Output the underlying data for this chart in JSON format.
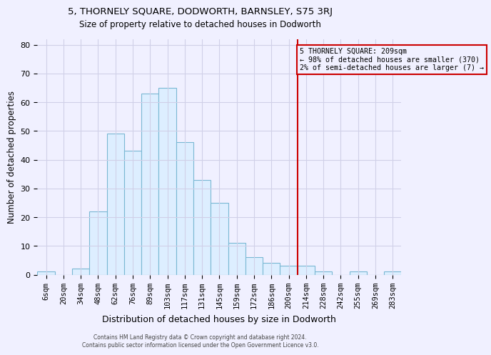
{
  "title": "5, THORNELY SQUARE, DODWORTH, BARNSLEY, S75 3RJ",
  "subtitle": "Size of property relative to detached houses in Dodworth",
  "xlabel": "Distribution of detached houses by size in Dodworth",
  "ylabel": "Number of detached properties",
  "footer_line1": "Contains HM Land Registry data © Crown copyright and database right 2024.",
  "footer_line2": "Contains public sector information licensed under the Open Government Licence v3.0.",
  "bar_labels": [
    "6sqm",
    "20sqm",
    "34sqm",
    "48sqm",
    "62sqm",
    "76sqm",
    "89sqm",
    "103sqm",
    "117sqm",
    "131sqm",
    "145sqm",
    "159sqm",
    "172sqm",
    "186sqm",
    "200sqm",
    "214sqm",
    "228sqm",
    "242sqm",
    "255sqm",
    "269sqm",
    "283sqm"
  ],
  "bar_values": [
    1,
    0,
    2,
    22,
    49,
    43,
    63,
    65,
    46,
    33,
    25,
    11,
    6,
    4,
    3,
    3,
    1,
    0,
    1,
    0,
    1
  ],
  "bar_color": "#ddeeff",
  "bar_edge_color": "#7ab8d4",
  "annotation_title": "5 THORNELY SQUARE: 209sqm",
  "annotation_line1": "← 98% of detached houses are smaller (370)",
  "annotation_line2": "2% of semi-detached houses are larger (7) →",
  "vline_x": 14.5,
  "vline_color": "#cc0000",
  "annotation_box_edge_color": "#cc0000",
  "ylim": [
    0,
    82
  ],
  "yticks": [
    0,
    10,
    20,
    30,
    40,
    50,
    60,
    70,
    80
  ],
  "background_color": "#f0f0ff",
  "grid_color": "#d0d0e8",
  "title_fontsize": 9.5,
  "subtitle_fontsize": 8.5
}
